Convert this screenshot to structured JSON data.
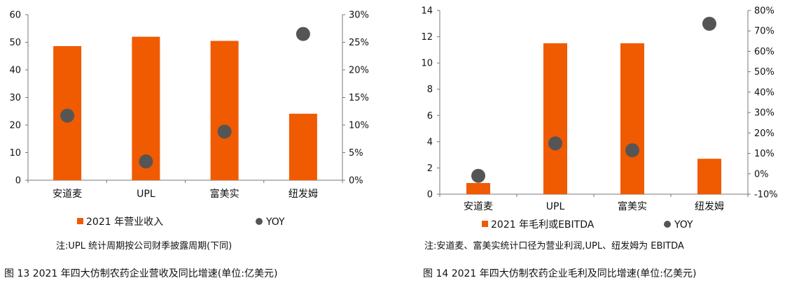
{
  "charts": [
    {
      "note": "注:UPL 统计周期按公司财季披露周期(下同)",
      "caption": "图 13  2021 年四大仿制农药企业营收及同比增速(单位:亿美元)"
    },
    {
      "note": "注:安道麦、富美实统计口径为营业利润,UPL、纽发姆为 EBITDA",
      "caption": "图 14  2021 年四大仿制农药企业毛利及同比增速(单位:亿美元)"
    }
  ],
  "chart_data": [
    {
      "type": "bar",
      "categories": [
        "安道麦",
        "UPL",
        "富美实",
        "纽发姆"
      ],
      "series": [
        {
          "name": "2021 年营业收入",
          "kind": "bar",
          "axis": "left",
          "color": "#f05a00",
          "values": [
            48.6,
            52.0,
            50.5,
            24.1
          ]
        },
        {
          "name": "YOY",
          "kind": "scatter",
          "axis": "right",
          "color": "#555555",
          "values": [
            0.117,
            0.034,
            0.088,
            0.265
          ]
        }
      ],
      "yleft": {
        "min": 0,
        "max": 60,
        "ticks": [
          0,
          10,
          20,
          30,
          40,
          50,
          60
        ],
        "tick_labels": [
          "0",
          "10",
          "20",
          "30",
          "40",
          "50",
          "60"
        ]
      },
      "yright": {
        "min": 0,
        "max": 0.3,
        "ticks": [
          0,
          0.05,
          0.1,
          0.15,
          0.2,
          0.25,
          0.3
        ],
        "tick_labels": [
          "0%",
          "5%",
          "10%",
          "15%",
          "20%",
          "25%",
          "30%"
        ]
      },
      "legend_position": "bottom",
      "grid": false
    },
    {
      "type": "bar",
      "categories": [
        "安道麦",
        "UPL",
        "富美实",
        "纽发姆"
      ],
      "series": [
        {
          "name": "2021 年毛利或EBITDA",
          "kind": "bar",
          "axis": "left",
          "color": "#f05a00",
          "values": [
            0.85,
            11.5,
            11.5,
            2.7
          ]
        },
        {
          "name": "YOY",
          "kind": "scatter",
          "axis": "right",
          "color": "#555555",
          "values": [
            -0.01,
            0.149,
            0.115,
            0.735
          ]
        }
      ],
      "yleft": {
        "min": 0,
        "max": 14,
        "ticks": [
          0,
          2,
          4,
          6,
          8,
          10,
          12,
          14
        ],
        "tick_labels": [
          "0",
          "2",
          "4",
          "6",
          "8",
          "10",
          "12",
          "14"
        ]
      },
      "yright": {
        "min": -0.1,
        "max": 0.8,
        "ticks": [
          -0.1,
          0,
          0.1,
          0.2,
          0.3,
          0.4,
          0.5,
          0.6,
          0.7,
          0.8
        ],
        "tick_labels": [
          "-10%",
          "0%",
          "10%",
          "20%",
          "30%",
          "40%",
          "50%",
          "60%",
          "70%",
          "80%"
        ]
      },
      "legend_position": "bottom",
      "grid": false
    }
  ]
}
